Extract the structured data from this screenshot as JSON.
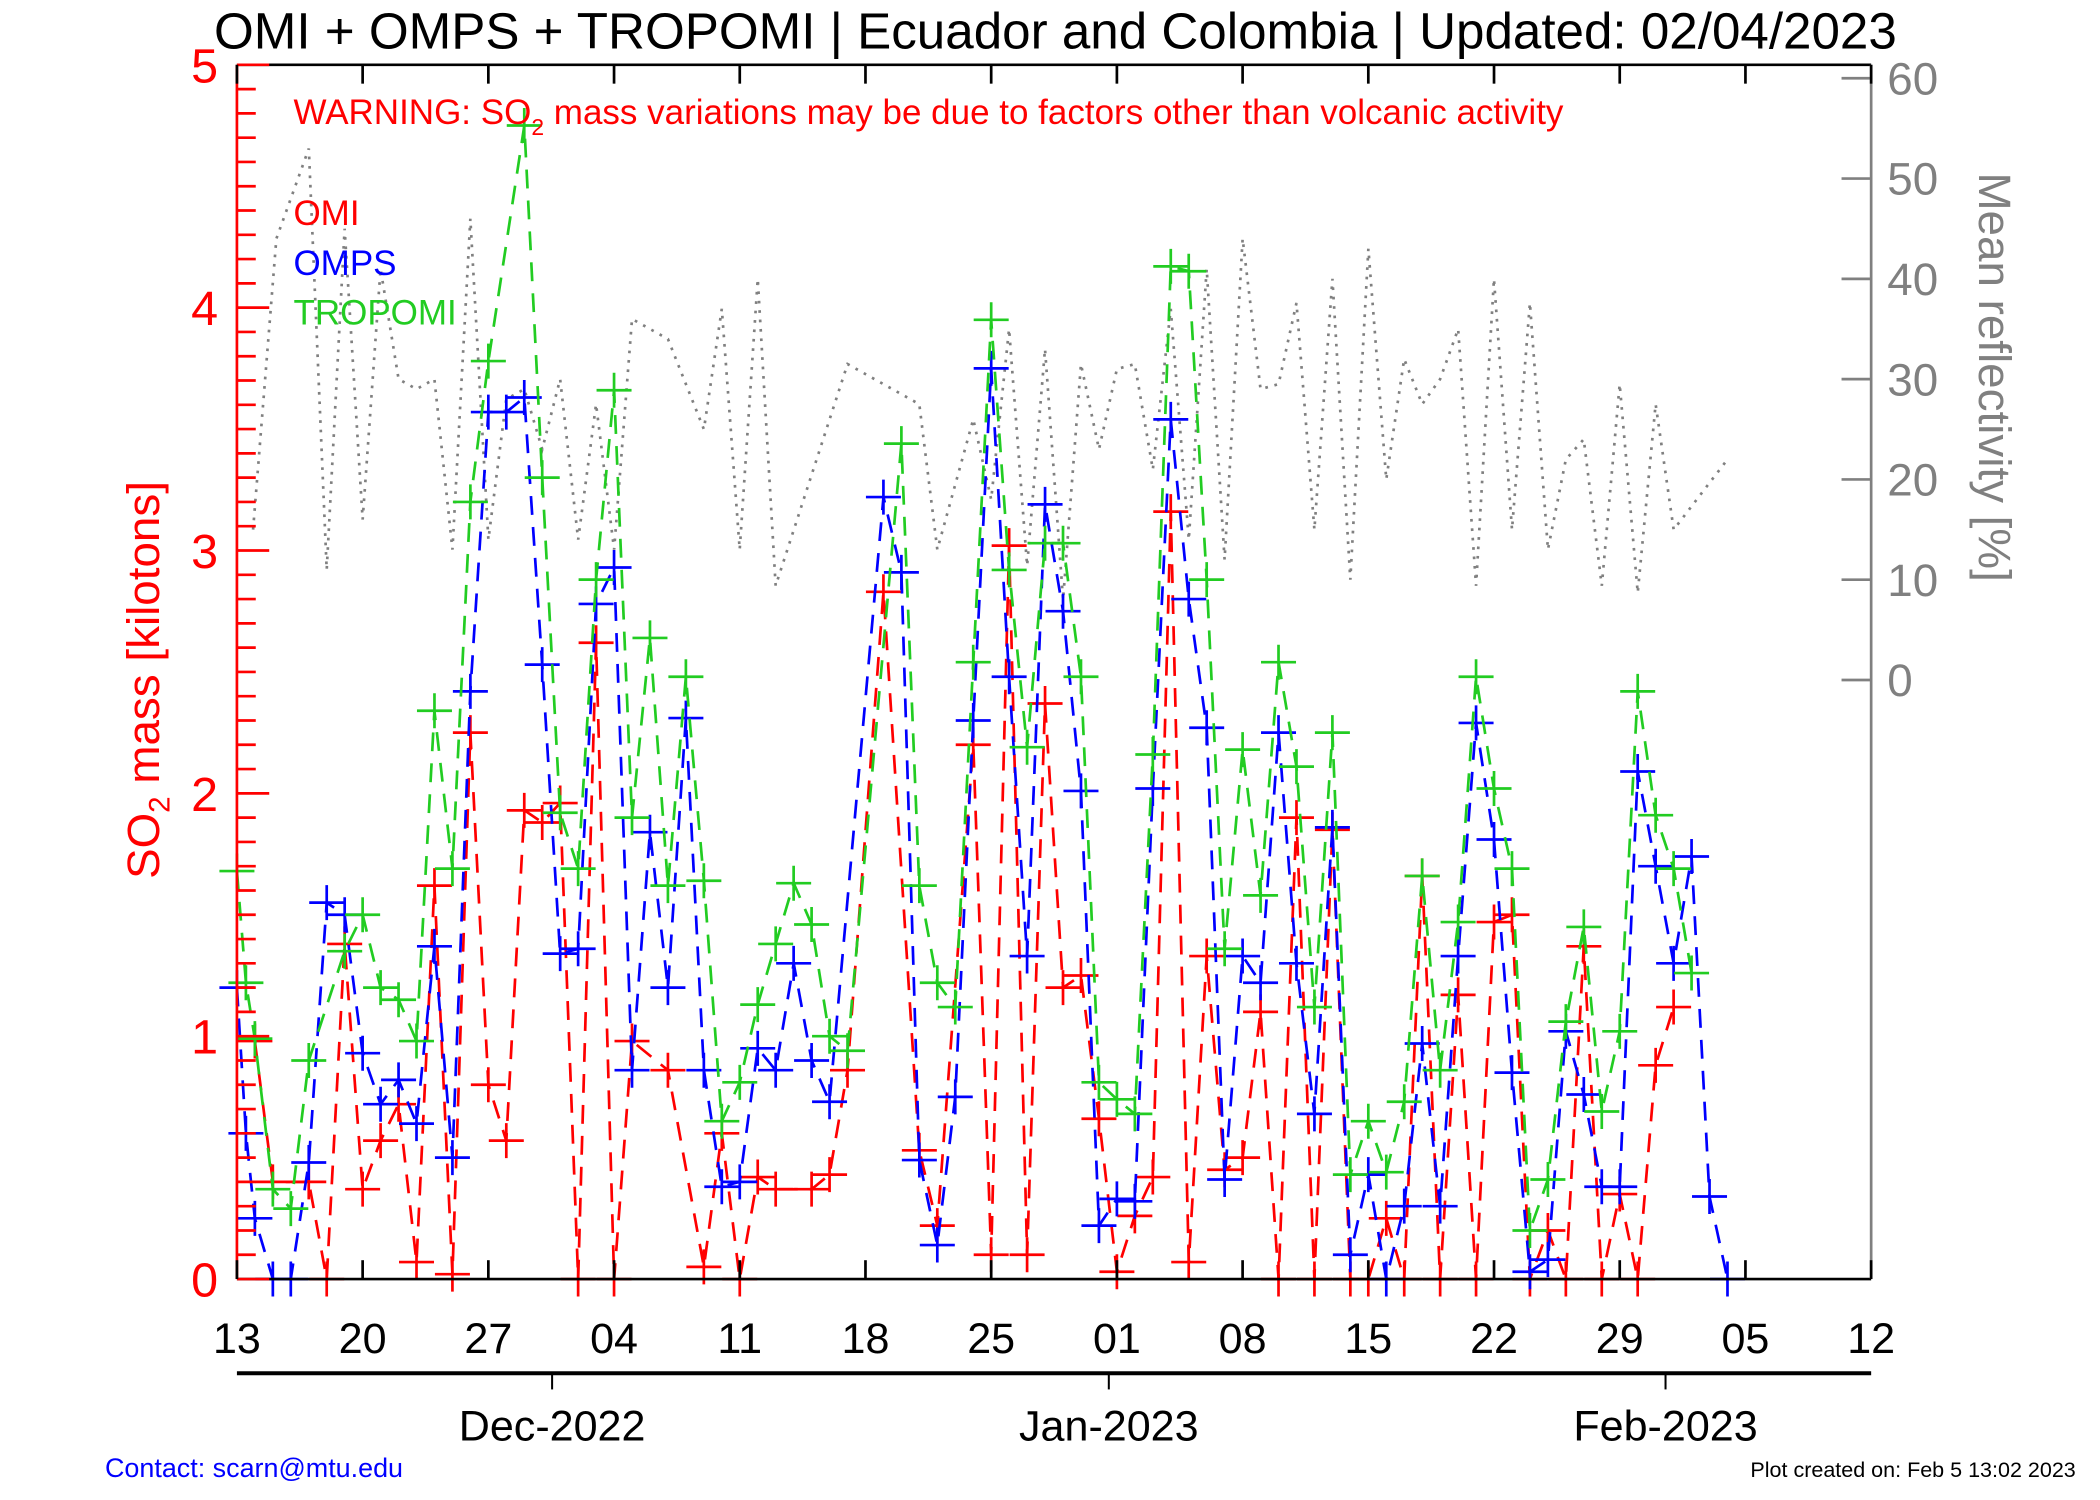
{
  "chart_data": {
    "type": "line",
    "title": "OMI + OMPS + TROPOMI | Ecuador and Colombia | Updated: 02/04/2023",
    "warning": {
      "prefix": "WARNING: SO",
      "sub": "2",
      "suffix": " mass variations may be due to factors other than volcanic activity"
    },
    "x_start": "2022-11-13",
    "xlim_days": [
      0,
      91
    ],
    "x_ticks": [
      {
        "day": 0,
        "label": "13"
      },
      {
        "day": 7,
        "label": "20"
      },
      {
        "day": 14,
        "label": "27"
      },
      {
        "day": 21,
        "label": "04"
      },
      {
        "day": 28,
        "label": "11"
      },
      {
        "day": 35,
        "label": "18"
      },
      {
        "day": 42,
        "label": "25"
      },
      {
        "day": 49,
        "label": "01"
      },
      {
        "day": 56,
        "label": "08"
      },
      {
        "day": 63,
        "label": "15"
      },
      {
        "day": 70,
        "label": "22"
      },
      {
        "day": 77,
        "label": "29"
      },
      {
        "day": 84,
        "label": "05"
      },
      {
        "day": 91,
        "label": "12"
      }
    ],
    "months": [
      {
        "day": 18,
        "label": "Dec-2022"
      },
      {
        "day": 49,
        "label": "Jan-2023"
      },
      {
        "day": 80,
        "label": "Feb-2023"
      }
    ],
    "y_left": {
      "label_prefix": "SO",
      "label_sub": "2",
      "label_suffix": " mass [kilotons]",
      "lim": [
        0,
        5
      ],
      "ticks": [
        "0",
        "1",
        "2",
        "3",
        "4",
        "5"
      ],
      "color": "#ff0000"
    },
    "y_right": {
      "label": "Mean reflectivity [%]",
      "lim": [
        0,
        60
      ],
      "ticks": [
        "0",
        "10",
        "20",
        "30",
        "40",
        "50",
        "60"
      ],
      "color": "#808080"
    },
    "legend": [
      {
        "name": "OMI",
        "color": "#ff0000"
      },
      {
        "name": "OMPS",
        "color": "#0000ff"
      },
      {
        "name": "TROPOMI",
        "color": "#22cc22"
      }
    ],
    "series": [
      {
        "name": "OMI",
        "color": "#ff0000",
        "points": [
          [
            1,
            0.98
          ],
          [
            2,
            0.4
          ],
          [
            4,
            0.4
          ],
          [
            5,
            0
          ],
          [
            6,
            1.38
          ],
          [
            7,
            0.37
          ],
          [
            8,
            0.57
          ],
          [
            9,
            0.72
          ],
          [
            10,
            0.07
          ],
          [
            11,
            1.62
          ],
          [
            12,
            0.02
          ],
          [
            13,
            2.25
          ],
          [
            14,
            0.8
          ],
          [
            15,
            0.57
          ],
          [
            16,
            1.93
          ],
          [
            17,
            1.88
          ],
          [
            18,
            1.96
          ],
          [
            19,
            0
          ],
          [
            20,
            2.62
          ],
          [
            21,
            0
          ],
          [
            22,
            0.98
          ],
          [
            24,
            0.86
          ],
          [
            26,
            0.05
          ],
          [
            27,
            0.6
          ],
          [
            28,
            0
          ],
          [
            29,
            0.42
          ],
          [
            30,
            0.37
          ],
          [
            32,
            0.37
          ],
          [
            33,
            0.43
          ],
          [
            34,
            0.86
          ],
          [
            36,
            2.83
          ],
          [
            38,
            0.53
          ],
          [
            39,
            0.22
          ],
          [
            41,
            2.2
          ],
          [
            42,
            0.1
          ],
          [
            43,
            3.02
          ],
          [
            44,
            0.1
          ],
          [
            45,
            2.37
          ],
          [
            46,
            1.2
          ],
          [
            47,
            1.25
          ],
          [
            48,
            0.66
          ],
          [
            49,
            0.03
          ],
          [
            50,
            0.26
          ],
          [
            51,
            0.42
          ],
          [
            52,
            3.16
          ],
          [
            53,
            0.07
          ],
          [
            54,
            1.33
          ],
          [
            55,
            0.45
          ],
          [
            56,
            0.5
          ],
          [
            57,
            1.1
          ],
          [
            58,
            0
          ],
          [
            59,
            1.9
          ],
          [
            60,
            0
          ],
          [
            61,
            1.85
          ],
          [
            62,
            0
          ],
          [
            63,
            0
          ],
          [
            64,
            0.25
          ],
          [
            65,
            0
          ],
          [
            66,
            1.66
          ],
          [
            67,
            0
          ],
          [
            68,
            1.17
          ],
          [
            69,
            0
          ],
          [
            70,
            1.47
          ],
          [
            71,
            1.5
          ],
          [
            72,
            0
          ],
          [
            73,
            0.2
          ],
          [
            74,
            0
          ],
          [
            75,
            1.37
          ],
          [
            76,
            0
          ],
          [
            77,
            0.35
          ],
          [
            78,
            0
          ],
          [
            79,
            0.88
          ],
          [
            80,
            1.12
          ]
        ]
      },
      {
        "name": "OMPS",
        "color": "#0000ff",
        "points": [
          [
            0,
            1.2
          ],
          [
            0.5,
            0.6
          ],
          [
            1,
            0.25
          ],
          [
            2,
            0
          ],
          [
            3,
            0
          ],
          [
            4,
            0.48
          ],
          [
            5,
            1.55
          ],
          [
            6,
            1.5
          ],
          [
            7,
            0.93
          ],
          [
            8,
            0.72
          ],
          [
            9,
            0.82
          ],
          [
            10,
            0.64
          ],
          [
            11,
            1.37
          ],
          [
            12,
            0.5
          ],
          [
            13,
            2.42
          ],
          [
            14,
            3.57
          ],
          [
            15,
            3.57
          ],
          [
            16,
            3.63
          ],
          [
            17,
            2.53
          ],
          [
            18,
            1.34
          ],
          [
            19,
            1.36
          ],
          [
            20,
            2.78
          ],
          [
            21,
            2.93
          ],
          [
            22,
            0.86
          ],
          [
            23,
            1.84
          ],
          [
            24,
            1.2
          ],
          [
            25,
            2.31
          ],
          [
            26,
            0.86
          ],
          [
            27,
            0.38
          ],
          [
            28,
            0.4
          ],
          [
            29,
            0.95
          ],
          [
            30,
            0.86
          ],
          [
            31,
            1.3
          ],
          [
            32,
            0.9
          ],
          [
            33,
            0.73
          ],
          [
            36,
            3.22
          ],
          [
            37,
            2.91
          ],
          [
            38,
            0.49
          ],
          [
            39,
            0.14
          ],
          [
            40,
            0.75
          ],
          [
            41,
            2.3
          ],
          [
            42,
            3.75
          ],
          [
            43,
            2.48
          ],
          [
            44,
            1.33
          ],
          [
            45,
            3.19
          ],
          [
            46,
            2.75
          ],
          [
            47,
            2.01
          ],
          [
            48,
            0.22
          ],
          [
            49,
            0.33
          ],
          [
            50,
            0.32
          ],
          [
            51,
            2.02
          ],
          [
            52,
            3.54
          ],
          [
            53,
            2.8
          ],
          [
            54,
            2.27
          ],
          [
            55,
            0.41
          ],
          [
            56,
            1.33
          ],
          [
            57,
            1.22
          ],
          [
            58,
            2.25
          ],
          [
            59,
            1.3
          ],
          [
            60,
            0.68
          ],
          [
            61,
            1.86
          ],
          [
            62,
            0.1
          ],
          [
            63,
            0.43
          ],
          [
            64,
            0
          ],
          [
            65,
            0.3
          ],
          [
            66,
            0.97
          ],
          [
            67,
            0.3
          ],
          [
            68,
            1.33
          ],
          [
            69,
            2.29
          ],
          [
            70,
            1.81
          ],
          [
            71,
            0.85
          ],
          [
            72,
            0.03
          ],
          [
            73,
            0.08
          ],
          [
            74,
            1.02
          ],
          [
            75,
            0.76
          ],
          [
            76,
            0.38
          ],
          [
            77,
            0.38
          ],
          [
            78,
            2.09
          ],
          [
            79,
            1.7
          ],
          [
            80,
            1.3
          ],
          [
            81,
            1.74
          ],
          [
            82,
            0.34
          ],
          [
            83,
            0
          ]
        ]
      },
      {
        "name": "TROPOMI",
        "color": "#22cc22",
        "points": [
          [
            0,
            1.68
          ],
          [
            0.5,
            1.22
          ],
          [
            1,
            0.99
          ],
          [
            2,
            0.37
          ],
          [
            3,
            0.29
          ],
          [
            4,
            0.9
          ],
          [
            6,
            1.35
          ],
          [
            7,
            1.5
          ],
          [
            8,
            1.2
          ],
          [
            9,
            1.15
          ],
          [
            10,
            0.98
          ],
          [
            11,
            2.34
          ],
          [
            12,
            1.69
          ],
          [
            13,
            3.2
          ],
          [
            14,
            3.78
          ],
          [
            16,
            4.75
          ],
          [
            17,
            3.3
          ],
          [
            18,
            1.92
          ],
          [
            19,
            1.69
          ],
          [
            20,
            2.88
          ],
          [
            21,
            3.66
          ],
          [
            22,
            1.9
          ],
          [
            23,
            2.64
          ],
          [
            24,
            1.62
          ],
          [
            25,
            2.48
          ],
          [
            26,
            1.64
          ],
          [
            27,
            0.65
          ],
          [
            28,
            0.81
          ],
          [
            29,
            1.13
          ],
          [
            30,
            1.38
          ],
          [
            31,
            1.63
          ],
          [
            32,
            1.46
          ],
          [
            33,
            1.0
          ],
          [
            34,
            0.94
          ],
          [
            37,
            3.44
          ],
          [
            38,
            1.62
          ],
          [
            39,
            1.22
          ],
          [
            40,
            1.12
          ],
          [
            41,
            2.54
          ],
          [
            42,
            3.95
          ],
          [
            43,
            2.92
          ],
          [
            44,
            2.19
          ],
          [
            45,
            3.03
          ],
          [
            46,
            3.03
          ],
          [
            47,
            2.48
          ],
          [
            48,
            0.81
          ],
          [
            49,
            0.74
          ],
          [
            50,
            0.68
          ],
          [
            51,
            2.16
          ],
          [
            52,
            4.17
          ],
          [
            53,
            4.15
          ],
          [
            54,
            2.88
          ],
          [
            55,
            1.36
          ],
          [
            56,
            2.18
          ],
          [
            57,
            1.58
          ],
          [
            58,
            2.54
          ],
          [
            59,
            2.11
          ],
          [
            60,
            1.12
          ],
          [
            61,
            2.25
          ],
          [
            62,
            0.43
          ],
          [
            63,
            0.65
          ],
          [
            64,
            0.44
          ],
          [
            65,
            0.73
          ],
          [
            66,
            1.66
          ],
          [
            67,
            0.86
          ],
          [
            68,
            1.47
          ],
          [
            69,
            2.48
          ],
          [
            70,
            2.02
          ],
          [
            71,
            1.69
          ],
          [
            72,
            0.2
          ],
          [
            73,
            0.41
          ],
          [
            74,
            1.06
          ],
          [
            75,
            1.45
          ],
          [
            76,
            0.69
          ],
          [
            77,
            1.02
          ],
          [
            78,
            2.42
          ],
          [
            79,
            1.91
          ],
          [
            80,
            1.69
          ],
          [
            81,
            1.26
          ]
        ]
      }
    ],
    "reflectivity": {
      "name": "Mean reflectivity",
      "color": "#808080",
      "points": [
        [
          0.9,
          15
        ],
        [
          2.2,
          44
        ],
        [
          4,
          53
        ],
        [
          5,
          11
        ],
        [
          6,
          45
        ],
        [
          7,
          16
        ],
        [
          8,
          41
        ],
        [
          9,
          30
        ],
        [
          10,
          29
        ],
        [
          11,
          30
        ],
        [
          12,
          13
        ],
        [
          13,
          46
        ],
        [
          14,
          14
        ],
        [
          15,
          28
        ],
        [
          16,
          29
        ],
        [
          17,
          23
        ],
        [
          18,
          30
        ],
        [
          19,
          14
        ],
        [
          20,
          27.5
        ],
        [
          21,
          13
        ],
        [
          22,
          36
        ],
        [
          24,
          34
        ],
        [
          26,
          25
        ],
        [
          27,
          37
        ],
        [
          28,
          13
        ],
        [
          29,
          40
        ],
        [
          30,
          9.4
        ],
        [
          34,
          31.5
        ],
        [
          38,
          27.5
        ],
        [
          39,
          13
        ],
        [
          41,
          26
        ],
        [
          42,
          18
        ],
        [
          43,
          35
        ],
        [
          44,
          11.4
        ],
        [
          45,
          33
        ],
        [
          46,
          8
        ],
        [
          47,
          31.5
        ],
        [
          48,
          23
        ],
        [
          49,
          31
        ],
        [
          50,
          31.5
        ],
        [
          51,
          21
        ],
        [
          52,
          37
        ],
        [
          53,
          14
        ],
        [
          54,
          41
        ],
        [
          55,
          12
        ],
        [
          56,
          44
        ],
        [
          57,
          29
        ],
        [
          58,
          29.5
        ],
        [
          59,
          37.6
        ],
        [
          60,
          15
        ],
        [
          61,
          40
        ],
        [
          62,
          10
        ],
        [
          63,
          43
        ],
        [
          64,
          20
        ],
        [
          65,
          32
        ],
        [
          66,
          27.5
        ],
        [
          67,
          30
        ],
        [
          68,
          35
        ],
        [
          69,
          9.4
        ],
        [
          70,
          40
        ],
        [
          71,
          15
        ],
        [
          72,
          37.6
        ],
        [
          73,
          13
        ],
        [
          74,
          22
        ],
        [
          75,
          24
        ],
        [
          76,
          9.4
        ],
        [
          77,
          29.5
        ],
        [
          78,
          8.7
        ],
        [
          79,
          27.5
        ],
        [
          80,
          15
        ],
        [
          83,
          22
        ]
      ]
    }
  },
  "footer": {
    "contact": "Contact: scarn@mtu.edu",
    "created": "Plot created on: Feb  5 13:02 2023"
  }
}
